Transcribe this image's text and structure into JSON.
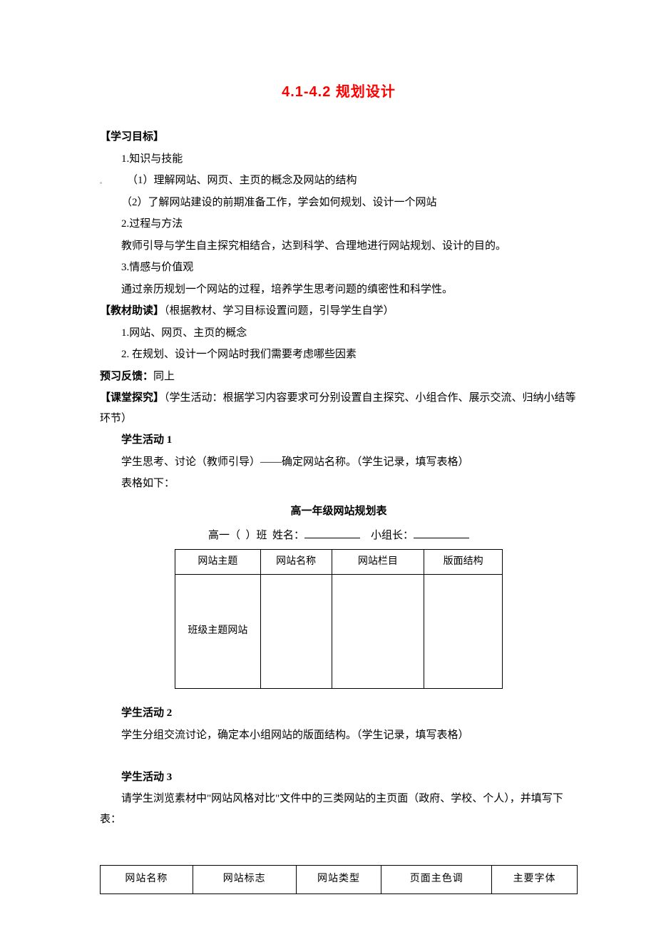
{
  "title": "4.1-4.2 规划设计",
  "sections": {
    "goals": {
      "header": "【学习目标】",
      "items": [
        "1.知识与技能",
        "（1）理解网站、网页、主页的概念及网站的结构",
        "（2）了解网站建设的前期准备工作，学会如何规划、设计一个网站",
        "2.过程与方法",
        "教师引导与学生自主探究相结合，达到科学、合理地进行网站规划、设计的目的。",
        "3.情感与价值观",
        "通过亲历规划一个网站的过程，培养学生思考问题的缜密性和科学性。"
      ]
    },
    "reading": {
      "header": "【教材助读】",
      "note": "（根据教材、学习目标设置问题，引导学生自学）",
      "items": [
        "1.网站、网页、主页的概念",
        "2. 在规划、设计一个网站时我们需要考虑哪些因素"
      ]
    },
    "preview": {
      "label": "预习反馈：",
      "text": "同上"
    },
    "explore": {
      "header": "【课堂探究】",
      "note": "（学生活动：根据学习内容要求可分别设置自主探究、小组合作、展示交流、归纳小结等环节）"
    },
    "activity1": {
      "header": "学生活动 1",
      "line1": "学生思考、讨论（教师引导）——确定网站名称。（学生记录，填写表格）",
      "line2": "表格如下：",
      "tableTitle": "高一年级网站规划表",
      "meta": {
        "class_prefix": "高一（",
        "class_suffix": "）班",
        "name_label": "姓名：",
        "leader_label": "小组长："
      },
      "table": {
        "headers": [
          "网站主题",
          "网站名称",
          "网站栏目",
          "版面结构"
        ],
        "row": [
          "班级主题网站",
          "",
          "",
          ""
        ]
      }
    },
    "activity2": {
      "header": "学生活动 2",
      "line1": "学生分组交流讨论，确定本小组网站的版面结构。（学生记录，填写表格）"
    },
    "activity3": {
      "header": "学生活动 3",
      "line1": "请学生浏览素材中\"网站风格对比\"文件中的三类网站的主页面（政府、学校、个人），并填写下表：",
      "table": {
        "headers": [
          "网站名称",
          "网站标志",
          "网站类型",
          "页面主色调",
          "主要字体"
        ]
      }
    }
  },
  "colors": {
    "title_color": "#ff0000",
    "text_color": "#000000",
    "background": "#ffffff",
    "border": "#000000"
  },
  "typography": {
    "body_font": "SimSun",
    "body_size_pt": 11,
    "title_size_pt": 15,
    "line_height": 1.9
  }
}
